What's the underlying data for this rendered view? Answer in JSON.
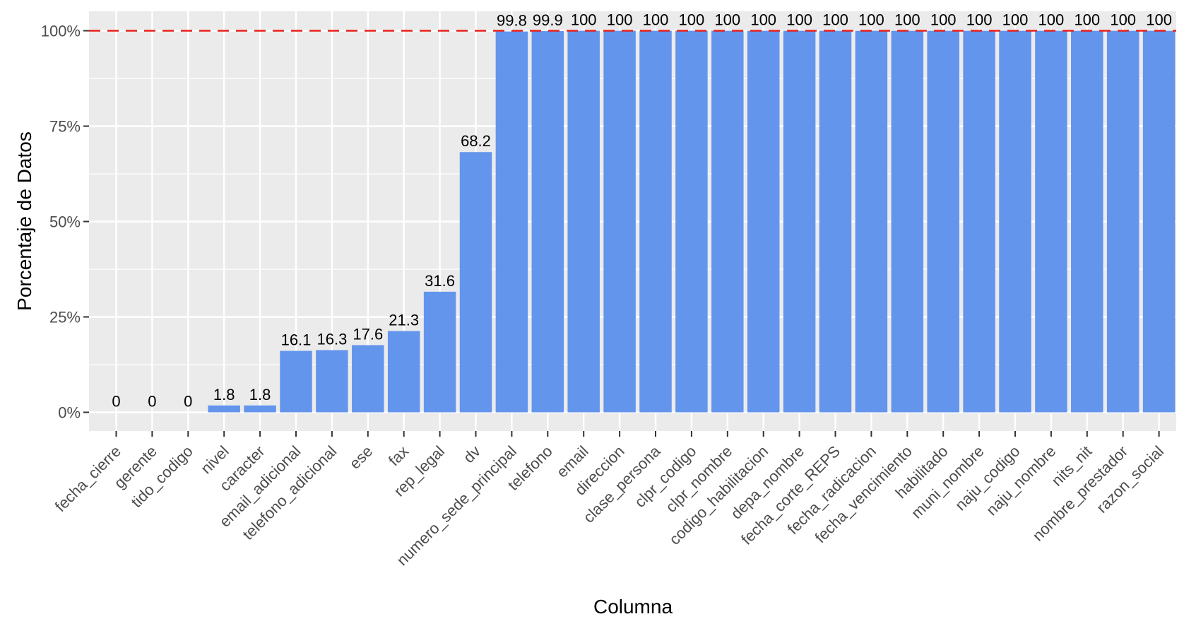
{
  "chart_data": {
    "type": "bar",
    "title": "",
    "xlabel": "Columna",
    "ylabel": "Porcentaje de Datos",
    "ylim": [
      0,
      100
    ],
    "y_ticks": [
      "0%",
      "25%",
      "50%",
      "75%",
      "100%"
    ],
    "reference_line": {
      "value": 100,
      "style": "dashed",
      "color": "#e8201a"
    },
    "grid": true,
    "legend": "none",
    "bar_color": "#6495ed",
    "panel_background": "#ebebeb",
    "categories": [
      "fecha_cierre",
      "gerente",
      "tido_codigo",
      "nivel",
      "caracter",
      "email_adicional",
      "telefono_adicional",
      "ese",
      "fax",
      "rep_legal",
      "dv",
      "numero_sede_principal",
      "telefono",
      "email",
      "direccion",
      "clase_persona",
      "clpr_codigo",
      "clpr_nombre",
      "codigo_habilitacion",
      "depa_nombre",
      "fecha_corte_REPS",
      "fecha_radicacion",
      "fecha_vencimiento",
      "habilitado",
      "muni_nombre",
      "naju_codigo",
      "naju_nombre",
      "nits_nit",
      "nombre_prestador",
      "razon_social"
    ],
    "values": [
      0,
      0,
      0,
      1.8,
      1.8,
      16.1,
      16.3,
      17.6,
      21.3,
      31.6,
      68.2,
      99.8,
      99.9,
      100,
      100,
      100,
      100,
      100,
      100,
      100,
      100,
      100,
      100,
      100,
      100,
      100,
      100,
      100,
      100,
      100
    ],
    "value_labels": [
      "0",
      "0",
      "0",
      "1.8",
      "1.8",
      "16.1",
      "16.3",
      "17.6",
      "21.3",
      "31.6",
      "68.2",
      "99.8",
      "99.9",
      "100",
      "100",
      "100",
      "100",
      "100",
      "100",
      "100",
      "100",
      "100",
      "100",
      "100",
      "100",
      "100",
      "100",
      "100",
      "100",
      "100"
    ]
  }
}
